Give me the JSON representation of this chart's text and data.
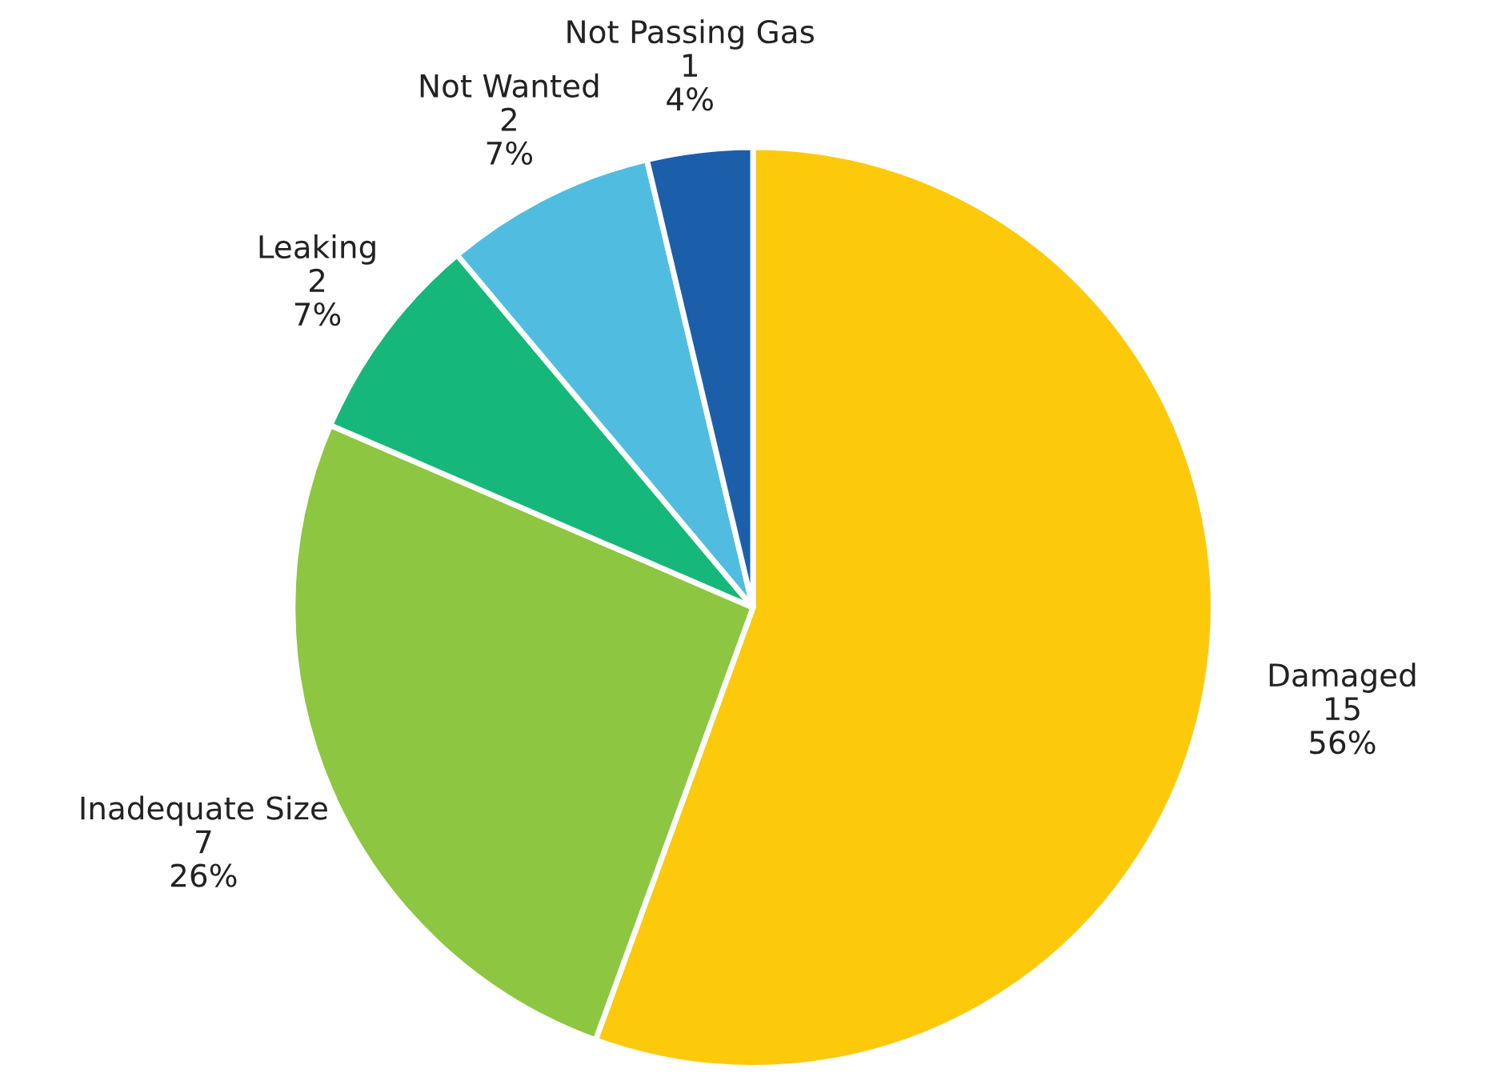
{
  "chart_data": {
    "type": "pie",
    "categories": [
      "Damaged",
      "Inadequate Size",
      "Leaking",
      "Not Wanted",
      "Not Passing Gas"
    ],
    "values": [
      15,
      7,
      2,
      2,
      1
    ],
    "colors": [
      "#fdc90b",
      "#8dc641",
      "#16b77a",
      "#50bde0",
      "#1b5faa"
    ],
    "value_labels": [
      "15\n56%",
      "7\n26%",
      "2\n7%",
      "2\n7%",
      "1\n4%"
    ]
  }
}
